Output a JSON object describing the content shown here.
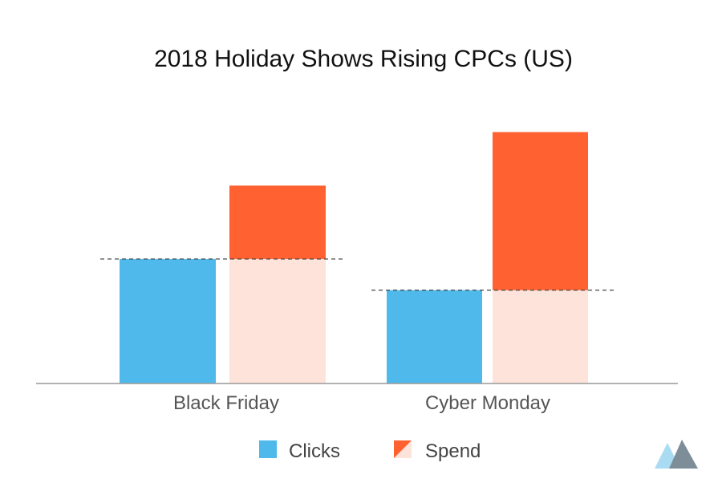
{
  "chart_data": {
    "type": "bar",
    "title": "2018 Holiday Shows Rising CPCs (US)",
    "categories": [
      "Black Friday",
      "Cyber Monday"
    ],
    "series": [
      {
        "name": "Clicks",
        "values": [
          100,
          75
        ]
      },
      {
        "name": "Spend",
        "values": [
          159,
          202
        ]
      }
    ],
    "reference_lines": "dashed line at each category's Clicks level; lower part of each Spend bar up to that line is drawn in a light tint",
    "ylim": [
      0,
      205
    ],
    "axes_visible": false,
    "grid": false,
    "legend_position": "bottom-center",
    "colors": {
      "clicks": "#4eb9ea",
      "spend": "#ff6130",
      "spend_base": "#fde3d9",
      "axis": "#999999",
      "dash": "#444444"
    }
  },
  "logo": {
    "icon": "mountain-logo-icon",
    "colors": [
      "#a9dcf3",
      "#7d8e99"
    ]
  }
}
